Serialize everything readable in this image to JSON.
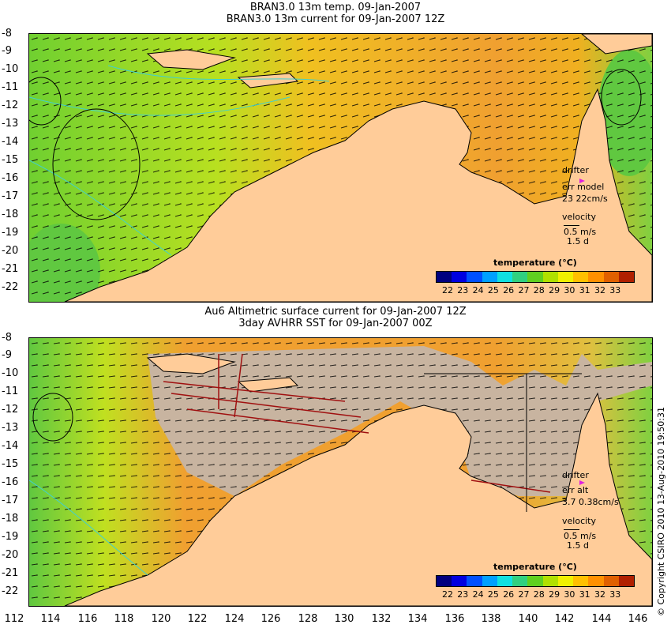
{
  "top_panel": {
    "title_line1": "BRAN3.0 13m temp. 09-Jan-2007",
    "title_line2": "BRAN3.0 13m current for 09-Jan-2007 12Z",
    "drifter_label": "drifter",
    "err_label": "err model",
    "err_value": "23 22cm/s",
    "velocity_label": "velocity",
    "velocity_scale": "0.5 m/s",
    "velocity_time": "1.5 d",
    "legend_title": "temperature (°C)"
  },
  "bottom_panel": {
    "title_line1": "Au6 Altimetric surface current for 09-Jan-2007 12Z",
    "title_line2": "3day AVHRR SST for 09-Jan-2007 00Z",
    "drifter_label": "drifter",
    "err_label": "err alt",
    "err_value": "3.7 0.38cm/s",
    "velocity_label": "velocity",
    "velocity_scale": "0.5 m/s",
    "velocity_time": "1.5 d",
    "legend_title": "temperature (°C)"
  },
  "y_ticks": [
    "-8",
    "-9",
    "-10",
    "-11",
    "-12",
    "-13",
    "-14",
    "-15",
    "-16",
    "-17",
    "-18",
    "-19",
    "-20",
    "-21",
    "-22"
  ],
  "x_ticks": [
    "112",
    "114",
    "116",
    "118",
    "120",
    "122",
    "124",
    "126",
    "128",
    "130",
    "132",
    "134",
    "136",
    "138",
    "140",
    "142",
    "144",
    "146"
  ],
  "colorbar_ticks": [
    "22",
    "23",
    "24",
    "25",
    "26",
    "27",
    "28",
    "29",
    "30",
    "31",
    "32",
    "33"
  ],
  "colorbar_colors": [
    "#00007f",
    "#0000e0",
    "#0050ff",
    "#00a0ff",
    "#10e0e0",
    "#30d080",
    "#60d020",
    "#b0e000",
    "#f0f000",
    "#ffc000",
    "#ff9000",
    "#e06000",
    "#b02000"
  ],
  "colors": {
    "land": "#ffcc99",
    "warm": "#f0a030",
    "cool": "#70d030",
    "cloud": "#c8b4a0",
    "contour": "#40d0d0"
  },
  "copyright": "© Copyright CSIRO 2010   13-Aug-2010 19:50:31"
}
